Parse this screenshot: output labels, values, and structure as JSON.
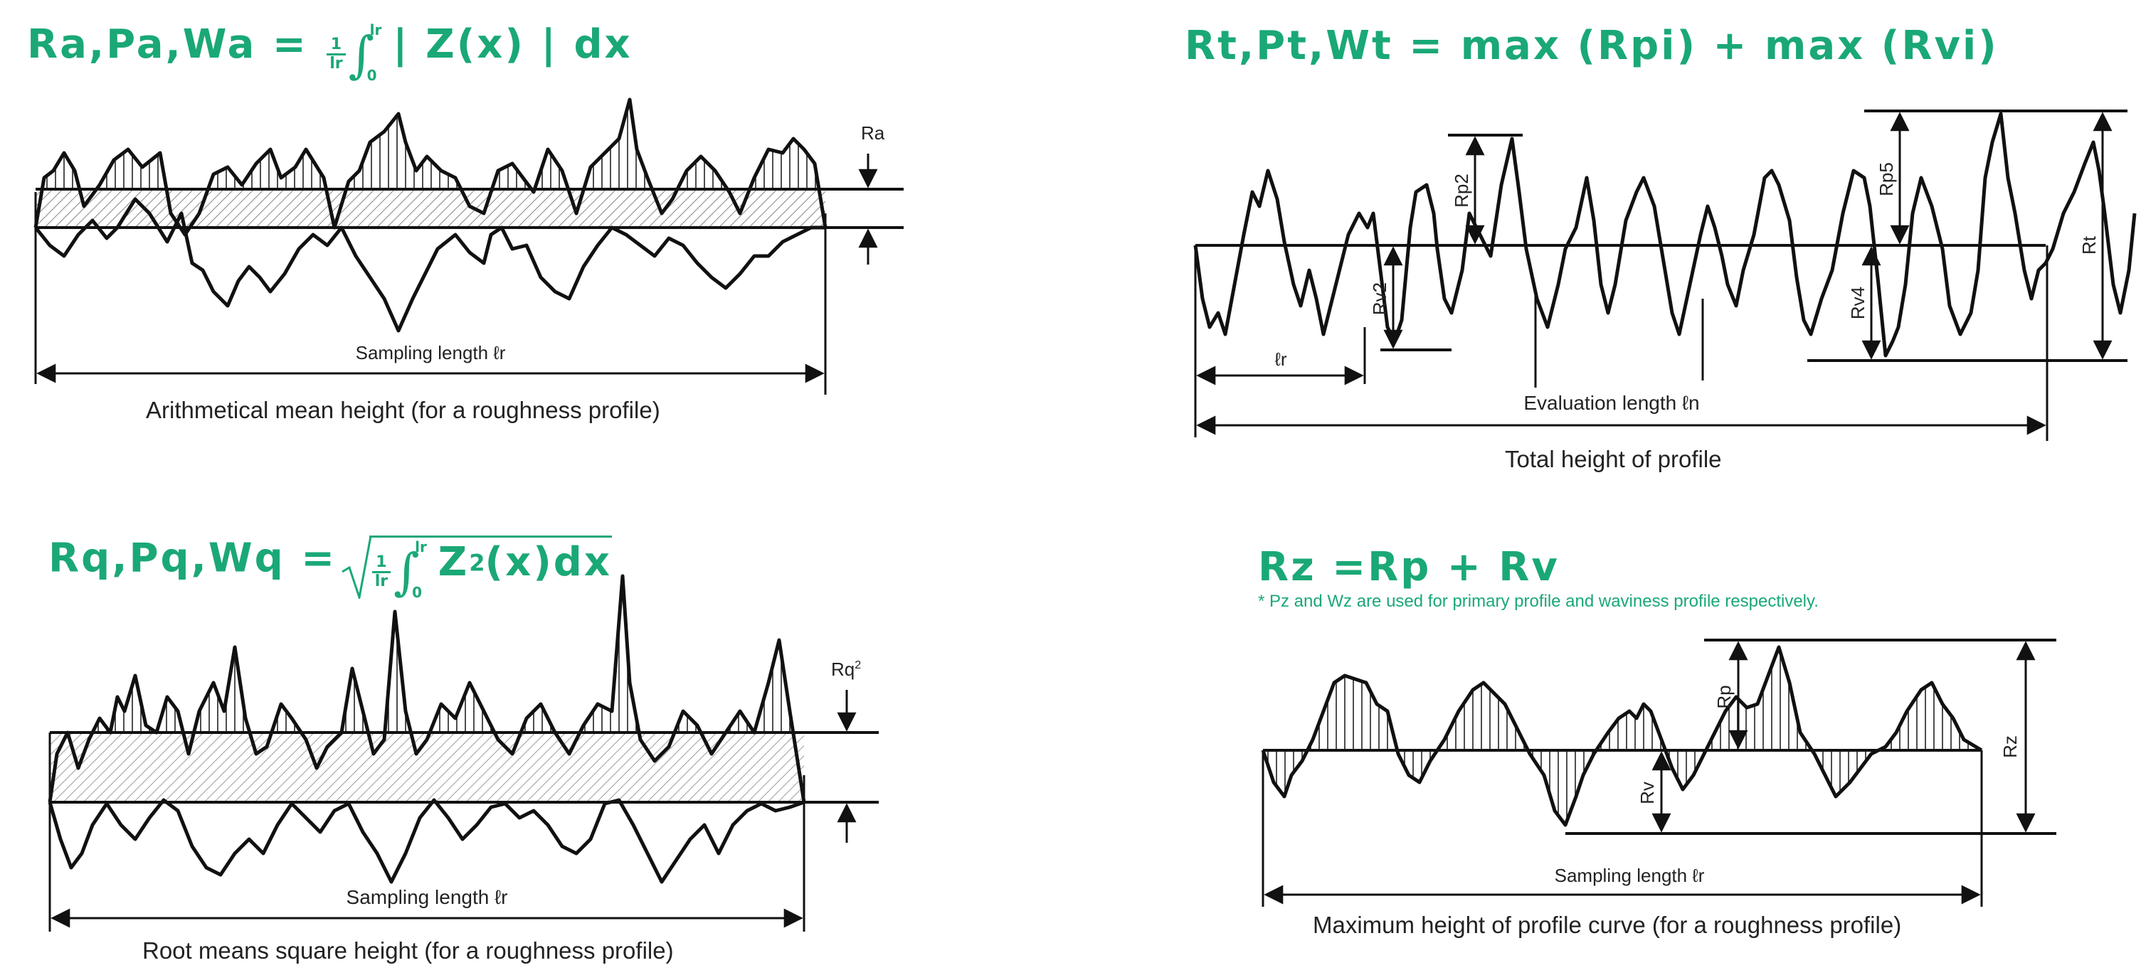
{
  "panels": {
    "ra": {
      "formula_left": "Ra,Pa,Wa = ",
      "frac_num": "1",
      "frac_den": "lr",
      "int_upper": "lr",
      "int_lower": "0",
      "formula_right": "| Z(x) | dx",
      "marker": "Ra",
      "length_label": "Sampling length ℓr",
      "caption": "Arithmetical mean height (for a roughness profile)"
    },
    "rt": {
      "formula": "Rt,Pt,Wt = max (Rpi) + max (Rvi)",
      "labels": {
        "rp2": "Rp2",
        "rv2": "Rv2",
        "rp5": "Rp5",
        "rv4": "Rv4",
        "rt": "Rt",
        "lr": "ℓr"
      },
      "length_label": "Evaluation length ℓn",
      "caption": "Total height of profile"
    },
    "rq": {
      "formula_left": "Rq,Pq,Wq =",
      "frac_num": "1",
      "frac_den": "lr",
      "int_upper": "lr",
      "int_lower": "0",
      "formula_right": "Z",
      "formula_sup": "2",
      "formula_tail": "(x)dx",
      "marker": "Rq",
      "marker_sup": "2",
      "length_label": "Sampling length ℓr",
      "caption": "Root means square height (for a roughness profile)"
    },
    "rz": {
      "formula": "Rz =Rp + Rv",
      "note": "* Pz and Wz are used for primary profile and waviness profile respectively.",
      "labels": {
        "rp": "Rp",
        "rv": "Rv",
        "rz": "Rz"
      },
      "length_label": "Sampling length ℓr",
      "caption": "Maximum height of profile curve (for a roughness profile)"
    }
  },
  "colors": {
    "accent": "#1aa876",
    "ink": "#111111"
  }
}
